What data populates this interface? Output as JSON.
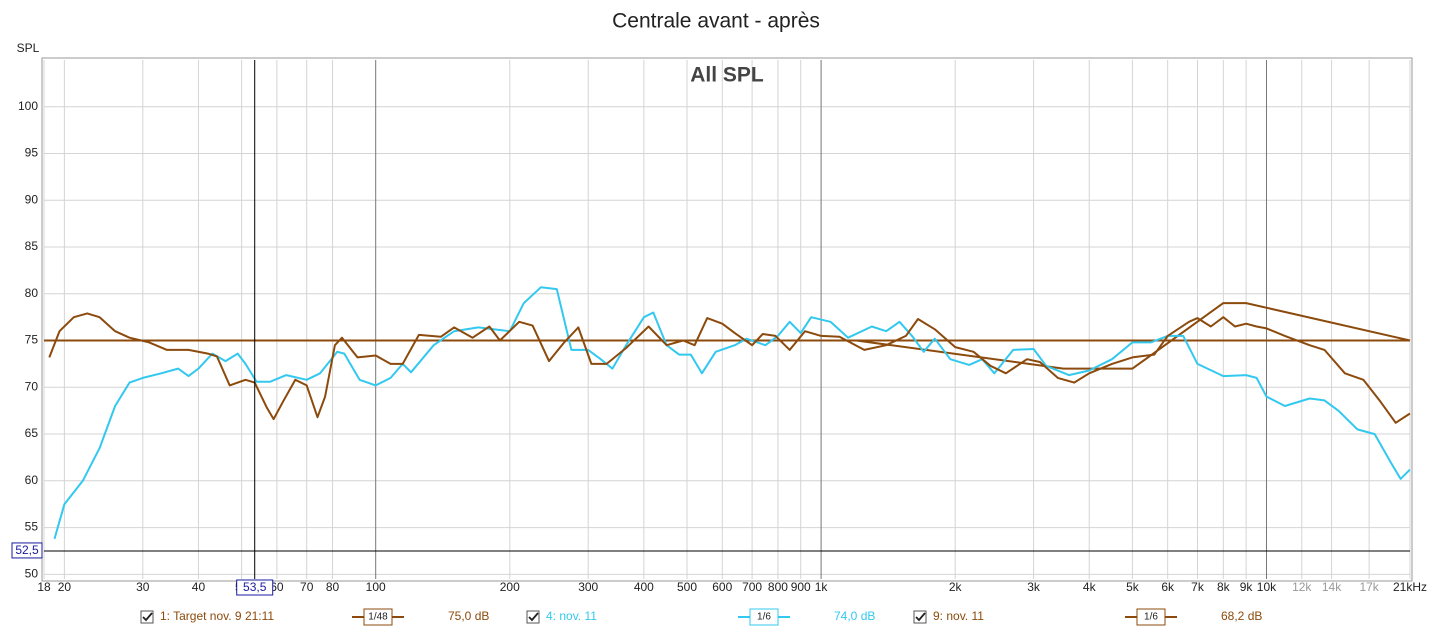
{
  "chart_data": {
    "type": "line",
    "title": "Centrale avant - après",
    "annotation": "All SPL",
    "ylabel": "SPL",
    "log_x": true,
    "grid": true,
    "xlim": [
      18,
      21000
    ],
    "ylim": [
      49.5,
      105
    ],
    "xticks": [
      18,
      20,
      30,
      40,
      50,
      60,
      70,
      80,
      100,
      200,
      300,
      400,
      500,
      600,
      700,
      800,
      900,
      {
        "value": 1000,
        "label": "1k"
      },
      {
        "value": 2000,
        "label": "2k"
      },
      {
        "value": 3000,
        "label": "3k"
      },
      {
        "value": 4000,
        "label": "4k"
      },
      {
        "value": 5000,
        "label": "5k"
      },
      {
        "value": 6000,
        "label": "6k"
      },
      {
        "value": 7000,
        "label": "7k"
      },
      {
        "value": 8000,
        "label": "8k"
      },
      {
        "value": 9000,
        "label": "9k"
      },
      {
        "value": 10000,
        "label": "10k"
      },
      {
        "value": 12000,
        "label": "12k"
      },
      {
        "value": 14000,
        "label": "14k"
      },
      {
        "value": 17000,
        "label": "17k"
      },
      {
        "value": 21000,
        "label": "21kHz"
      }
    ],
    "yticks": [
      50,
      55,
      60,
      65,
      70,
      75,
      80,
      85,
      90,
      95,
      100
    ],
    "cursor": {
      "x": {
        "value": 53.5,
        "label": "53,5"
      },
      "y": {
        "value": 52.5,
        "label": "52,5"
      }
    },
    "reference_lines": [
      {
        "value": 75,
        "color": "#8c4a0c"
      }
    ],
    "series": [
      {
        "name": "1: Target nov. 9 21:11",
        "color": "#8c4a0c",
        "smoothing": "1/48",
        "readout": "75,0 dB",
        "x": [
          18,
          1200,
          3500,
          5000,
          8000,
          9000,
          21000
        ],
        "values": [
          75,
          75,
          72,
          72,
          79,
          79,
          75
        ]
      },
      {
        "name": "4: nov. 11",
        "color": "#33c8ef",
        "smoothing": "1/6",
        "readout": "74,0 dB",
        "x": [
          19,
          20,
          22,
          24,
          26,
          28,
          30,
          33,
          36,
          38,
          40,
          43,
          46,
          49,
          51,
          54,
          58,
          63,
          70,
          75,
          82,
          85,
          92,
          100,
          108,
          115,
          120,
          135,
          150,
          170,
          200,
          215,
          235,
          255,
          275,
          300,
          320,
          340,
          365,
          400,
          420,
          450,
          480,
          510,
          540,
          580,
          640,
          680,
          750,
          800,
          850,
          900,
          950,
          1050,
          1150,
          1300,
          1400,
          1500,
          1600,
          1700,
          1800,
          1950,
          2150,
          2300,
          2450,
          2700,
          3000,
          3200,
          3600,
          4000,
          4500,
          5000,
          5500,
          6000,
          6500,
          7000,
          8000,
          9000,
          9500,
          10000,
          11000,
          12500,
          13500,
          14500,
          16000,
          17500,
          19000,
          20000,
          21000
        ],
        "values": [
          53.8,
          57.5,
          60,
          63.5,
          68,
          70.5,
          71,
          71.5,
          72,
          71.2,
          72,
          73.6,
          72.8,
          73.6,
          72.5,
          70.6,
          70.6,
          71.3,
          70.8,
          71.5,
          73.8,
          73.6,
          70.8,
          70.2,
          71,
          72.5,
          71.6,
          74.5,
          76,
          76.4,
          76,
          79,
          80.7,
          80.5,
          74,
          74,
          73,
          72,
          74.5,
          77.5,
          78,
          74.5,
          73.5,
          73.5,
          71.5,
          73.8,
          74.5,
          75.2,
          74.5,
          75.5,
          77,
          75.8,
          77.5,
          77,
          75.3,
          76.5,
          76,
          77,
          75.5,
          73.8,
          75.2,
          73,
          72.4,
          73,
          71.5,
          74,
          74.1,
          72.3,
          71.3,
          71.8,
          73,
          74.8,
          74.8,
          75.5,
          75.5,
          72.5,
          71.2,
          71.3,
          71,
          69,
          68,
          68.8,
          68.6,
          67.5,
          65.5,
          65,
          62,
          60.2,
          61.2
        ]
      },
      {
        "name": "9: nov. 11",
        "color": "#8c4a0c",
        "smoothing": "1/6",
        "readout": "68,2 dB",
        "x": [
          18.5,
          19.5,
          21,
          22.5,
          24,
          26,
          28,
          31,
          34,
          38,
          42,
          44,
          47,
          51,
          53.5,
          57,
          59,
          62,
          66,
          70,
          74,
          77,
          81,
          84,
          91,
          100,
          108,
          115,
          125,
          140,
          150,
          165,
          180,
          190,
          210,
          225,
          245,
          265,
          285,
          305,
          330,
          365,
          410,
          450,
          490,
          520,
          555,
          600,
          640,
          700,
          740,
          790,
          850,
          920,
          1000,
          1100,
          1250,
          1400,
          1550,
          1650,
          1800,
          2000,
          2200,
          2400,
          2600,
          2900,
          3100,
          3400,
          3700,
          4000,
          4500,
          5000,
          5600,
          6000,
          6700,
          7000,
          7500,
          8000,
          8500,
          9000,
          9500,
          10000,
          11000,
          12500,
          13500,
          15000,
          16500,
          18000,
          19500,
          21000
        ],
        "values": [
          73.2,
          76,
          77.5,
          77.9,
          77.5,
          76,
          75.3,
          74.8,
          74,
          74,
          73.6,
          73.3,
          70.2,
          70.8,
          70.5,
          67.8,
          66.6,
          68.5,
          70.8,
          70.2,
          66.8,
          69,
          74.5,
          75.3,
          73.2,
          73.4,
          72.5,
          72.5,
          75.6,
          75.4,
          76.4,
          75.3,
          76.5,
          75,
          77,
          76.6,
          72.8,
          74.8,
          76.4,
          72.5,
          72.5,
          74.2,
          76.5,
          74.5,
          75,
          74.5,
          77.4,
          76.8,
          75.8,
          74.5,
          75.7,
          75.5,
          74,
          76,
          75.5,
          75.4,
          74,
          74.5,
          75.5,
          77.3,
          76.2,
          74.3,
          73.8,
          72.3,
          71.5,
          73,
          72.7,
          71,
          70.5,
          71.5,
          72.5,
          73.2,
          73.5,
          75.5,
          77,
          77.4,
          76.5,
          77.5,
          76.5,
          76.8,
          76.5,
          76.3,
          75.5,
          74.5,
          74,
          71.5,
          70.8,
          68.5,
          66.2,
          67.2
        ]
      }
    ]
  }
}
